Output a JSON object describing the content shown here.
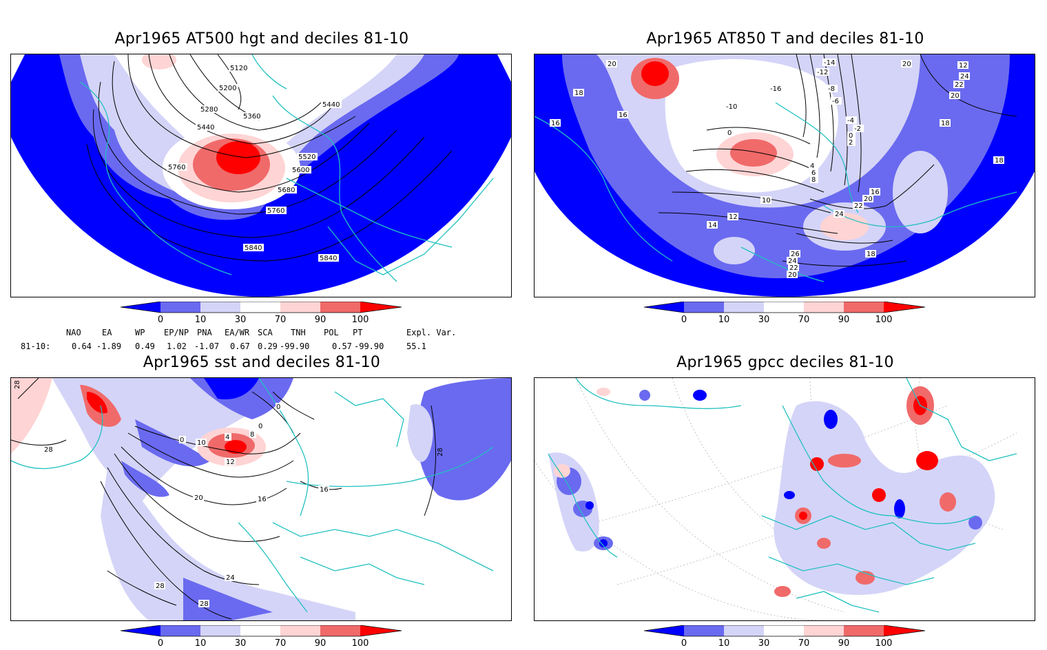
{
  "panels": [
    {
      "title": "Apr1965 AT500 hgt and deciles 81-10",
      "contour_labels": [
        "5120",
        "5200",
        "5280",
        "5360",
        "5440",
        "5440",
        "5520",
        "5600",
        "5680",
        "5760",
        "5760",
        "5840",
        "5840",
        "5600"
      ]
    },
    {
      "title": "Apr1965 AT850 T and deciles 81-10",
      "contour_labels": [
        "20",
        "18",
        "16",
        "16",
        "-14",
        "-12",
        "-16",
        "-8",
        "-6",
        "-10",
        "0",
        "-4",
        "-2",
        "0",
        "2",
        "4",
        "6",
        "8",
        "10",
        "12",
        "14",
        "16",
        "20",
        "22",
        "24",
        "26",
        "24",
        "22",
        "20",
        "18",
        "20",
        "12",
        "24",
        "22",
        "20",
        "18",
        "18",
        "16"
      ]
    },
    {
      "title": "Apr1965 sst and deciles 81-10",
      "contour_labels": [
        "28",
        "28",
        "0",
        "0",
        "10",
        "4",
        "8",
        "0",
        "12",
        "16",
        "20",
        "16",
        "24",
        "28",
        "28",
        "28"
      ]
    },
    {
      "title": "Apr1965 gpcc deciles 81-10",
      "contour_labels": []
    }
  ],
  "colorbar": {
    "tick_labels": [
      "0",
      "10",
      "30",
      "70",
      "90",
      "100"
    ],
    "colors": [
      "#0000ff",
      "#6a6af0",
      "#d4d4f8",
      "#ffffff",
      "#ffd4d4",
      "#f06a6a",
      "#ff0000"
    ]
  },
  "teleconnections": {
    "headers": [
      "NAO",
      "EA",
      "WP",
      "EP/NP",
      "PNA",
      "EA/WR",
      "SCA",
      "TNH",
      "POL",
      "PT",
      "Expl. Var."
    ],
    "row_label": "81-10:",
    "values": [
      "0.64",
      "-1.89",
      "0.49",
      "1.02",
      "-1.07",
      "0.67",
      "0.29",
      "-99.90",
      "0.57",
      "-99.90",
      "55.1"
    ]
  },
  "colors": {
    "coast": "#20c0c0",
    "contour": "#000000"
  }
}
